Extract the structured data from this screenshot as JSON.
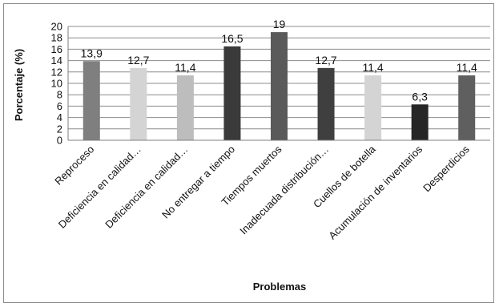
{
  "chart_data": {
    "type": "bar",
    "title": "",
    "xlabel": "Problemas",
    "ylabel": "Porcentaje (%)",
    "ylim": [
      0,
      20
    ],
    "yticks": [
      0,
      2,
      4,
      6,
      8,
      10,
      12,
      14,
      16,
      18,
      20
    ],
    "grid": true,
    "categories": [
      "Reproceso",
      "Deficiencia en calidad…",
      "Deficiencia en calidad…",
      "No entregar a tiempo",
      "Tiempos muertos",
      "Inadecuada distribución…",
      "Cuellos de botella",
      "Acumulación de inventarios",
      "Desperdicios"
    ],
    "values": [
      13.9,
      12.7,
      11.4,
      16.5,
      19,
      12.7,
      11.4,
      6.3,
      11.4
    ],
    "data_labels": [
      "13,9",
      "12,7",
      "11,4",
      "16,5",
      "19",
      "12,7",
      "11,4",
      "6,3",
      "11,4"
    ],
    "colors": [
      "#7f7f7f",
      "#d4d4d4",
      "#bdbdbd",
      "#3a3a3a",
      "#5a5a5a",
      "#3f3f3f",
      "#d4d4d4",
      "#262626",
      "#5f5f5f"
    ]
  }
}
